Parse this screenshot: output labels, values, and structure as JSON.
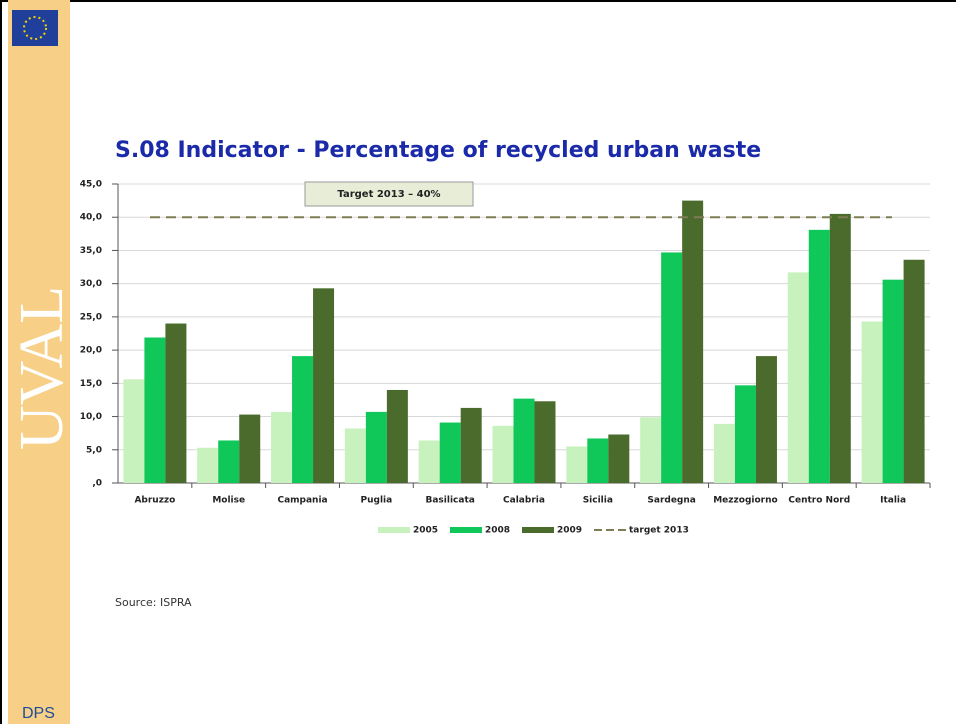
{
  "slide": {
    "sidebar_label": "UVAL",
    "logo_text": "DPS",
    "source": "Source: ISPRA"
  },
  "chart_data": {
    "type": "bar",
    "title": "S.08 Indicator - Percentage of recycled urban waste",
    "categories": [
      "Abruzzo",
      "Molise",
      "Campania",
      "Puglia",
      "Basilicata",
      "Calabria",
      "Sicilia",
      "Sardegna",
      "Mezzogiorno",
      "Centro Nord",
      "Italia"
    ],
    "series": [
      {
        "name": "2005",
        "color": "#c8f2bd",
        "values": [
          15.6,
          5.3,
          10.7,
          8.2,
          6.4,
          8.6,
          5.5,
          9.9,
          8.9,
          31.7,
          24.3
        ]
      },
      {
        "name": "2008",
        "color": "#10c85a",
        "values": [
          21.9,
          6.4,
          19.1,
          10.7,
          9.1,
          12.7,
          6.7,
          34.7,
          14.7,
          38.1,
          30.6
        ]
      },
      {
        "name": "2009",
        "color": "#4b6b2c",
        "values": [
          24.0,
          10.3,
          29.3,
          14.0,
          11.3,
          12.3,
          7.3,
          42.5,
          19.1,
          40.5,
          33.6
        ]
      }
    ],
    "reference_line": {
      "name": "target 2013",
      "value": 40,
      "color": "#7d7d55",
      "annotation": "Target 2013 – 40%"
    },
    "ylim": [
      0,
      45
    ],
    "yticks": [
      {
        "value": 0,
        "label": ",0"
      },
      {
        "value": 5,
        "label": "5,0"
      },
      {
        "value": 10,
        "label": "10,0"
      },
      {
        "value": 15,
        "label": "15,0"
      },
      {
        "value": 20,
        "label": "20,0"
      },
      {
        "value": 25,
        "label": "25,0"
      },
      {
        "value": 30,
        "label": "30,0"
      },
      {
        "value": 35,
        "label": "35,0"
      },
      {
        "value": 40,
        "label": "40,0"
      },
      {
        "value": 45,
        "label": "45,0"
      }
    ],
    "grid": true
  }
}
